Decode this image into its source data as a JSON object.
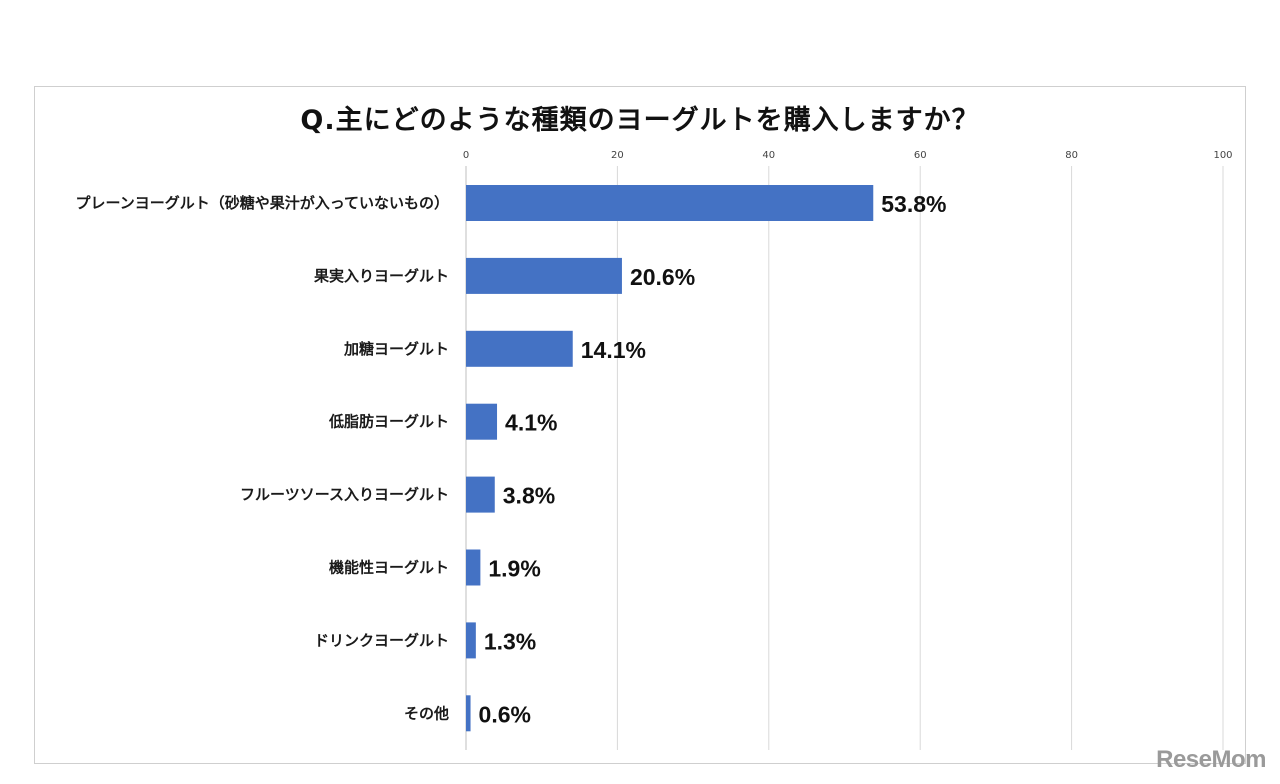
{
  "chart_data": {
    "type": "bar",
    "orientation": "horizontal",
    "title": "Q.主にどのような種類のヨーグルトを購入しますか？",
    "categories": [
      "プレーンヨーグルト（砂糖や果汁が入っていないもの）",
      "果実入りヨーグルト",
      "加糖ヨーグルト",
      "低脂肪ヨーグルト",
      "フルーツソース入りヨーグルト",
      "機能性ヨーグルト",
      "ドリンクヨーグルト",
      "その他"
    ],
    "values": [
      53.8,
      20.6,
      14.1,
      4.1,
      3.8,
      1.9,
      1.3,
      0.6
    ],
    "value_labels": [
      "53.8%",
      "20.6%",
      "14.1%",
      "4.1%",
      "3.8%",
      "1.9%",
      "1.3%",
      "0.6%"
    ],
    "xlim": [
      0,
      100
    ],
    "xticks": [
      0,
      20,
      40,
      60,
      80,
      100
    ],
    "xlabel": "",
    "ylabel": "",
    "grid": true,
    "bar_color": "#4472c4",
    "grid_color": "#d9d9d9"
  },
  "watermark": "ReseMom"
}
